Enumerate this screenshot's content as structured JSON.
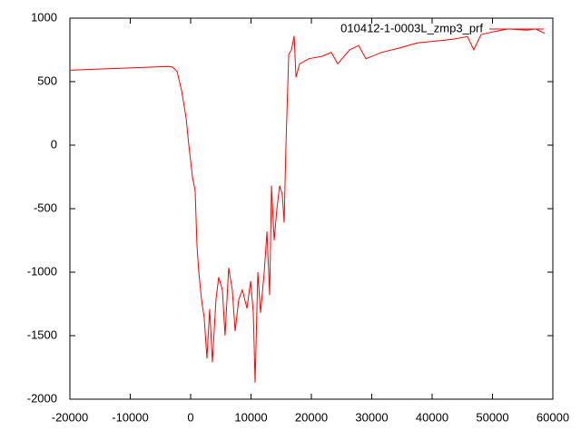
{
  "chart_data": {
    "type": "line",
    "x": [
      -20000,
      -3760,
      -3000,
      -2250,
      -1500,
      -750,
      -300,
      300,
      750,
      1050,
      1350,
      1800,
      2250,
      2700,
      3150,
      3600,
      4200,
      4650,
      5260,
      5700,
      6300,
      6900,
      7370,
      7970,
      8570,
      9330,
      9930,
      10380,
      10680,
      11130,
      11580,
      12190,
      12640,
      13090,
      13390,
      13840,
      14290,
      14740,
      15190,
      15490,
      15790,
      16250,
      16700,
      17150,
      17450,
      18050,
      19560,
      21800,
      23300,
      24360,
      26320,
      27830,
      29030,
      31590,
      34600,
      37600,
      40600,
      43600,
      45860,
      46900,
      48100,
      50360,
      52620,
      55630,
      57150,
      58650
    ],
    "series": [
      {
        "name": "010412-1-0003L_zmp3_prf",
        "color": "#ff0000",
        "values": [
          590,
          620,
          615,
          580,
          430,
          215,
          0,
          -250,
          -360,
          -790,
          -1000,
          -1215,
          -1360,
          -1680,
          -1290,
          -1710,
          -1215,
          -1040,
          -1140,
          -1500,
          -965,
          -1140,
          -1465,
          -1215,
          -1140,
          -1285,
          -1070,
          -1320,
          -1870,
          -1000,
          -1320,
          -1000,
          -680,
          -1180,
          -320,
          -750,
          -500,
          -320,
          -390,
          -610,
          0,
          715,
          750,
          860,
          535,
          640,
          680,
          700,
          730,
          640,
          750,
          785,
          680,
          730,
          765,
          805,
          820,
          835,
          855,
          750,
          870,
          895,
          915,
          905,
          915,
          880
        ]
      }
    ],
    "xlim": [
      -20000,
      60000
    ],
    "xticks": [
      -20000,
      -10000,
      0,
      10000,
      20000,
      30000,
      40000,
      50000,
      60000
    ],
    "ylim": [
      -2000,
      1000
    ],
    "yticks": [
      -2000,
      -1500,
      -1000,
      -500,
      0,
      500,
      1000
    ],
    "legend": "top-right"
  }
}
